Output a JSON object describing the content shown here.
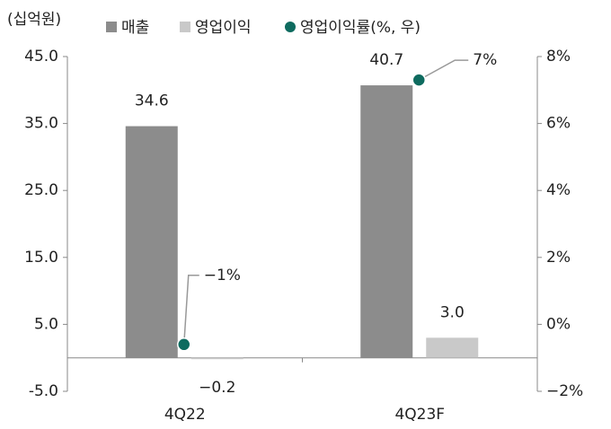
{
  "chart_data": {
    "type": "bar",
    "y_label": "(십억원)",
    "categories": [
      "4Q22",
      "4Q23F"
    ],
    "series": [
      {
        "name": "매출",
        "color": "#8c8c8c",
        "values": [
          34.6,
          40.7
        ],
        "value_labels": [
          "34.6",
          "40.7"
        ]
      },
      {
        "name": "영업이익",
        "color": "#c9c9c9",
        "values": [
          -0.2,
          3.0
        ],
        "value_labels": [
          "−0.2",
          "3.0"
        ]
      },
      {
        "name": "영업이익률(%, 우)",
        "color": "#0e6b5f",
        "type": "scatter",
        "axis": "y2",
        "values": [
          -0.6,
          7.3
        ],
        "value_labels": [
          "−1%",
          "7%"
        ]
      }
    ],
    "ylim": [
      -5,
      45
    ],
    "yticks": [
      {
        "value": -5,
        "label": "-5.0"
      },
      {
        "value": 5,
        "label": "5.0"
      },
      {
        "value": 15,
        "label": "15.0"
      },
      {
        "value": 25,
        "label": "25.0"
      },
      {
        "value": 35,
        "label": "35.0"
      },
      {
        "value": 45,
        "label": "45.0"
      }
    ],
    "y2lim": [
      -2,
      8
    ],
    "y2ticks": [
      {
        "value": -2,
        "label": "−2%"
      },
      {
        "value": 0,
        "label": "0%"
      },
      {
        "value": 2,
        "label": "2%"
      },
      {
        "value": 4,
        "label": "4%"
      },
      {
        "value": 6,
        "label": "6%"
      },
      {
        "value": 8,
        "label": "8%"
      }
    ],
    "negative_label_color": "#c00000"
  }
}
